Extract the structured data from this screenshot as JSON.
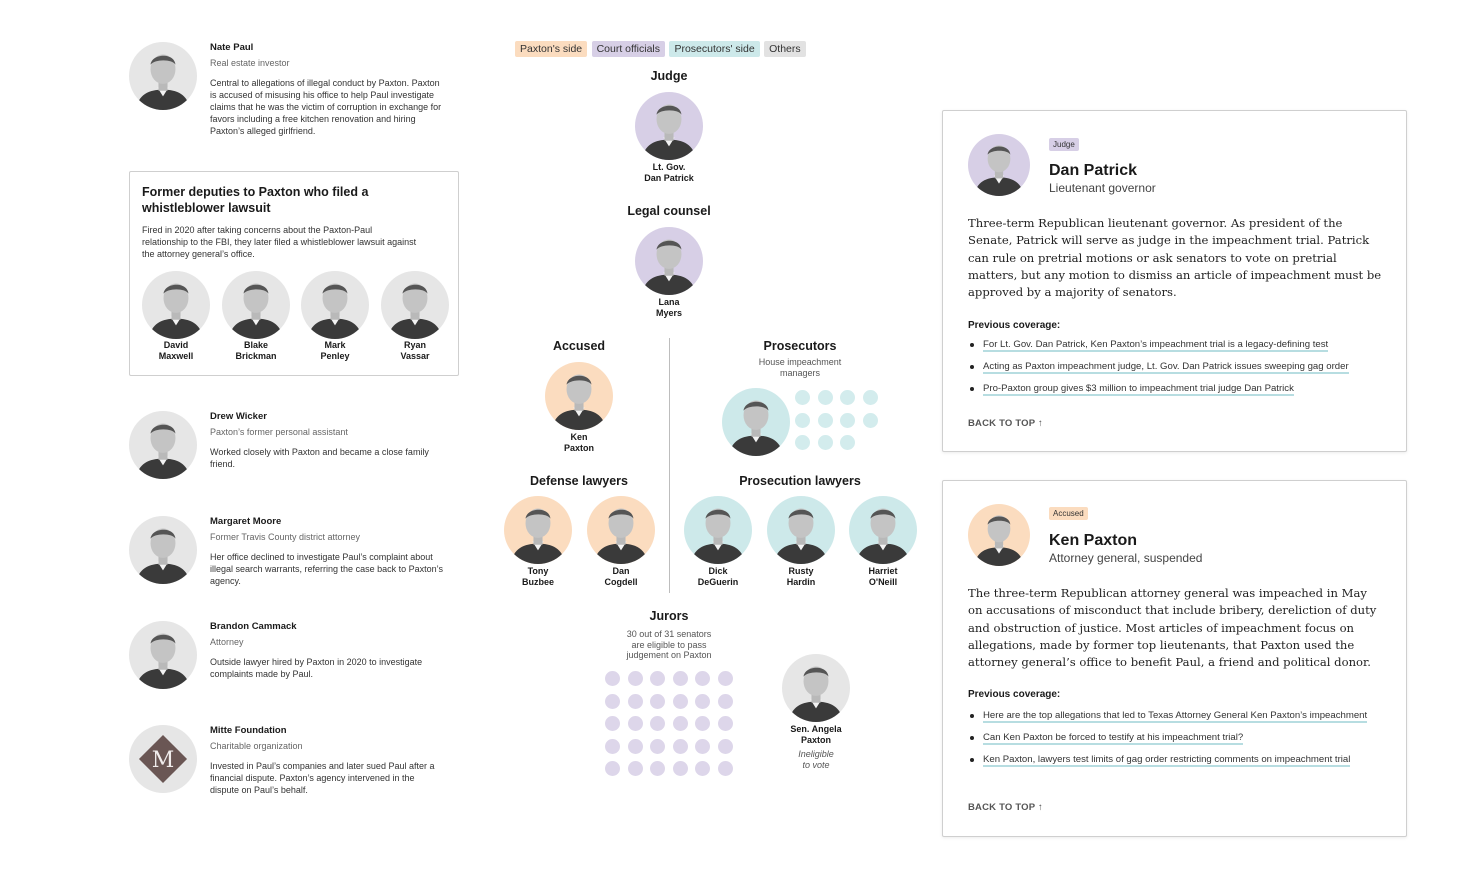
{
  "legend": {
    "paxton_side": "Paxton's side",
    "court_officials": "Court officials",
    "prosecutors_side": "Prosecutors' side",
    "others": "Others"
  },
  "colors": {
    "paxton_side": "#fbdcbf",
    "court_officials": "#d7cfe6",
    "prosecutors_side": "#cde9ea",
    "others": "#e2e2e2",
    "link_underline": "#b7dde1"
  },
  "left": {
    "nate": {
      "name": "Nate Paul",
      "role": "Real estate investor",
      "desc": "Central to allegations of illegal conduct by Paxton. Paxton is accused of misusing his office to help Paul investigate claims that he was the victim of corruption in exchange for favors including a free kitchen renovation and hiring Paxton’s alleged girlfriend."
    },
    "deputies": {
      "title": "Former deputies to Paxton who filed a whistleblower lawsuit",
      "desc": "Fired in 2020 after taking concerns about the Paxton-Paul relationship to the FBI, they later filed a whistleblower lawsuit against the attorney general’s office.",
      "people": [
        {
          "first": "David",
          "last": "Maxwell"
        },
        {
          "first": "Blake",
          "last": "Brickman"
        },
        {
          "first": "Mark",
          "last": "Penley"
        },
        {
          "first": "Ryan",
          "last": "Vassar"
        }
      ]
    },
    "drew": {
      "name": "Drew Wicker",
      "role": "Paxton’s former personal assistant",
      "desc": "Worked closely with Paxton and became a close family friend."
    },
    "margaret": {
      "name": "Margaret Moore",
      "role": "Former Travis County district attorney",
      "desc": "Her office declined to investigate Paul’s complaint about illegal search warrants, referring the case back to Paxton’s agency."
    },
    "brandon": {
      "name": "Brandon Cammack",
      "role": "Attorney",
      "desc": "Outside lawyer hired by Paxton in 2020 to investigate complaints made by Paul."
    },
    "mitte": {
      "name": "Mitte Foundation",
      "role": "Charitable organization",
      "desc": "Invested in Paul’s companies and later sued Paul after a financial dispute. Paxton’s agency intervened in the dispute on Paul’s behalf.",
      "logo_letter": "M"
    }
  },
  "chart": {
    "judge": {
      "title": "Judge",
      "line1": "Lt. Gov.",
      "line2": "Dan Patrick"
    },
    "counsel": {
      "title": "Legal counsel",
      "line1": "Lana",
      "line2": "Myers"
    },
    "accused": {
      "title": "Accused",
      "line1": "Ken",
      "line2": "Paxton"
    },
    "prosecutors": {
      "title": "Prosecutors",
      "sub1": "House impeachment",
      "sub2": "managers",
      "manager_dots": 11
    },
    "defense": {
      "title": "Defense lawyers",
      "people": [
        {
          "first": "Tony",
          "last": "Buzbee"
        },
        {
          "first": "Dan",
          "last": "Cogdell"
        }
      ]
    },
    "prosecution": {
      "title": "Prosecution lawyers",
      "people": [
        {
          "first": "Dick",
          "last": "DeGuerin"
        },
        {
          "first": "Rusty",
          "last": "Hardin"
        },
        {
          "first": "Harriet",
          "last": "O'Neill"
        }
      ]
    },
    "jurors": {
      "title": "Jurors",
      "sub1": "30 out of 31 senators",
      "sub2": "are eligible to pass",
      "sub3": "judgement on Paxton",
      "count": 30
    },
    "angela": {
      "line1": "Sen. Angela",
      "line2": "Paxton",
      "note1": "Ineligible",
      "note2": "to vote"
    }
  },
  "cards": {
    "patrick": {
      "badge": "Judge",
      "name": "Dan Patrick",
      "title": "Lieutenant governor",
      "body": "Three-term Republican lieutenant governor. As president of the Senate, Patrick will serve as judge in the impeachment trial. Patrick can rule on pretrial motions or ask senators to vote on pretrial matters, but any motion to dismiss an article of impeachment must be approved by a majority of senators.",
      "prev": "Previous coverage:",
      "links": [
        "For Lt. Gov. Dan Patrick, Ken Paxton’s impeachment trial is a legacy-defining test",
        "Acting as Paxton impeachment judge, Lt. Gov. Dan Patrick issues sweeping gag order",
        "Pro-Paxton group gives $3 million to impeachment trial judge Dan Patrick"
      ],
      "back": "BACK TO TOP ↑"
    },
    "paxton": {
      "badge": "Accused",
      "name": "Ken Paxton",
      "title": "Attorney general, suspended",
      "body": "The three-term Republican attorney general was impeached in May on accusations of misconduct that include bribery, dereliction of duty and obstruction of justice. Most articles of impeachment focus on allegations, made by former top lieutenants, that Paxton used the attorney general’s office to benefit Paul, a friend and political donor.",
      "prev": "Previous coverage:",
      "links": [
        "Here are the top allegations that led to Texas Attorney General Ken Paxton’s impeachment",
        "Can Ken Paxton be forced to testify at his impeachment trial?",
        "Ken Paxton, lawyers test limits of gag order restricting comments on impeachment trial"
      ],
      "back": "BACK TO TOP ↑"
    }
  }
}
